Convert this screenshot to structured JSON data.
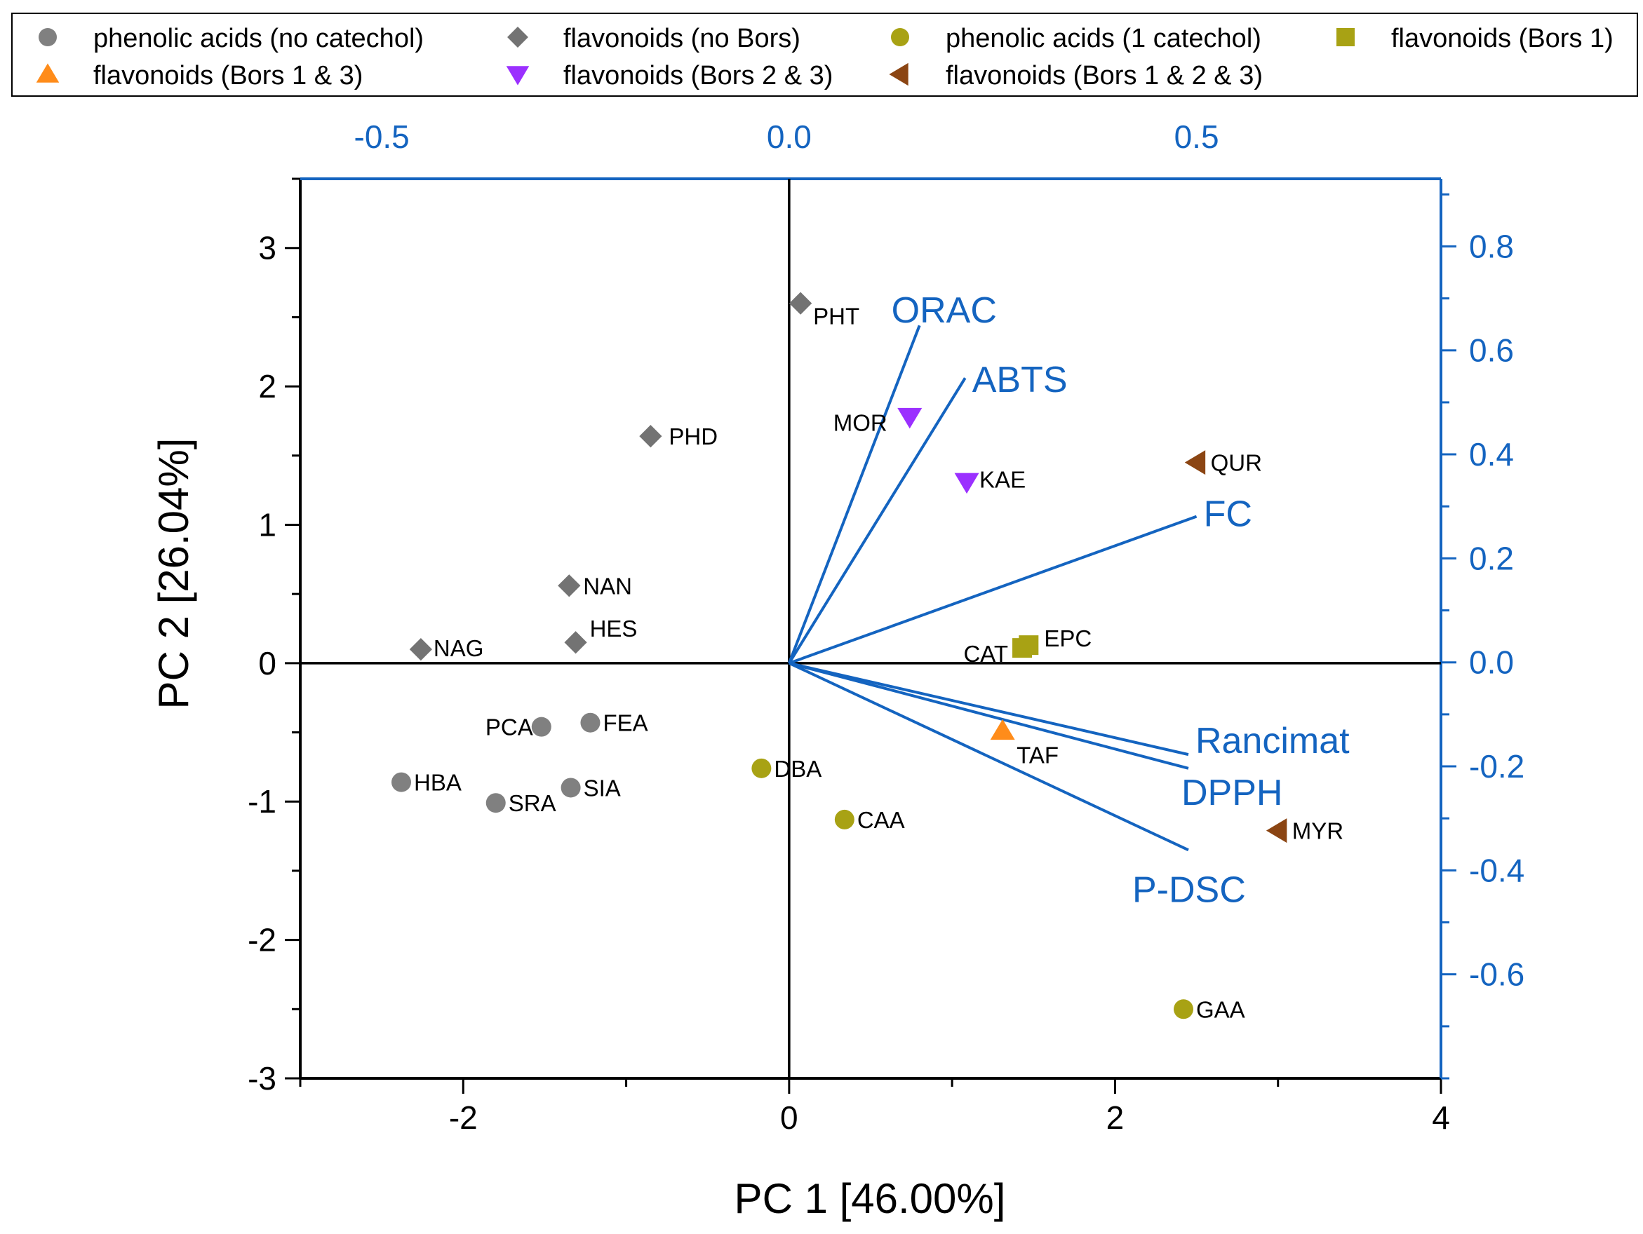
{
  "chart_data": {
    "type": "scatter",
    "subtype": "pca-biplot",
    "xlabel": "PC 1 [46.00%]",
    "ylabel": "PC 2 [26.04%]",
    "xlim": [
      -3,
      4
    ],
    "ylim": [
      -3,
      3.5
    ],
    "x_ticks": [
      -2,
      0,
      2,
      4
    ],
    "x_tick_labels": [
      "-2",
      "0",
      "2",
      "4"
    ],
    "y_ticks": [
      -3,
      -2,
      -1,
      0,
      1,
      2,
      3
    ],
    "y_tick_labels": [
      "-3",
      "-2",
      "-1",
      "0",
      "1",
      "2",
      "3"
    ],
    "top_axis": {
      "lim": [
        -0.6,
        0.8
      ],
      "ticks": [
        -0.5,
        0.0,
        0.5
      ],
      "tick_labels": [
        "-0.5",
        "0.0",
        "0.5"
      ],
      "color": "#1464c0"
    },
    "right_axis": {
      "lim": [
        -0.8,
        0.93
      ],
      "ticks": [
        -0.6,
        -0.4,
        -0.2,
        0.0,
        0.2,
        0.4,
        0.6,
        0.8
      ],
      "tick_labels": [
        "-0.6",
        "-0.4",
        "-0.2",
        "0.0",
        "0.2",
        "0.4",
        "0.6",
        "0.8"
      ],
      "color": "#1464c0"
    },
    "legend_position": "top",
    "series": [
      {
        "name": "phenolic acids (no catechol)",
        "marker": "circle",
        "color": "#808080",
        "points": [
          {
            "label": "PCA",
            "x": -1.52,
            "y": -0.46
          },
          {
            "label": "FEA",
            "x": -1.22,
            "y": -0.43
          },
          {
            "label": "HBA",
            "x": -2.38,
            "y": -0.86
          },
          {
            "label": "SRA",
            "x": -1.8,
            "y": -1.01
          },
          {
            "label": "SIA",
            "x": -1.34,
            "y": -0.9
          }
        ]
      },
      {
        "name": "flavonoids (no Bors)",
        "marker": "diamond",
        "color": "#737373",
        "points": [
          {
            "label": "PHT",
            "x": 0.07,
            "y": 2.6
          },
          {
            "label": "PHD",
            "x": -0.85,
            "y": 1.64
          },
          {
            "label": "NAN",
            "x": -1.35,
            "y": 0.56
          },
          {
            "label": "HES",
            "x": -1.31,
            "y": 0.15
          },
          {
            "label": "NAG",
            "x": -2.26,
            "y": 0.1
          }
        ]
      },
      {
        "name": "phenolic acids (1 catechol)",
        "marker": "circle",
        "color": "#a8a214",
        "points": [
          {
            "label": "DBA",
            "x": -0.17,
            "y": -0.76
          },
          {
            "label": "CAA",
            "x": 0.34,
            "y": -1.13
          },
          {
            "label": "GAA",
            "x": 2.42,
            "y": -2.5
          }
        ]
      },
      {
        "name": "flavonoids (Bors 1)",
        "marker": "square",
        "color": "#a8a214",
        "points": [
          {
            "label": "EPC",
            "x": 1.47,
            "y": 0.13
          },
          {
            "label": "CAT",
            "x": 1.43,
            "y": 0.11
          }
        ]
      },
      {
        "name": "flavonoids (Bors 1 & 3)",
        "marker": "triangle-up",
        "color": "#ff8c1a",
        "points": [
          {
            "label": "TAF",
            "x": 1.31,
            "y": -0.49
          }
        ]
      },
      {
        "name": "flavonoids (Bors 2 & 3)",
        "marker": "triangle-down",
        "color": "#9b30ff",
        "points": [
          {
            "label": "MOR",
            "x": 0.74,
            "y": 1.78
          },
          {
            "label": "KAE",
            "x": 1.09,
            "y": 1.31
          }
        ]
      },
      {
        "name": "flavonoids (Bors 1 & 2 & 3)",
        "marker": "triangle-left",
        "color": "#8b4513",
        "points": [
          {
            "label": "QUR",
            "x": 2.5,
            "y": 1.45
          },
          {
            "label": "MYR",
            "x": 3.0,
            "y": -1.21
          }
        ]
      }
    ],
    "loadings": [
      {
        "label": "ORAC",
        "x": 0.8,
        "y": 2.44
      },
      {
        "label": "ABTS",
        "x": 1.08,
        "y": 2.06
      },
      {
        "label": "FC",
        "x": 2.5,
        "y": 1.06
      },
      {
        "label": "Rancimat",
        "x": 2.45,
        "y": -0.66
      },
      {
        "label": "DPPH",
        "x": 2.45,
        "y": -0.76
      },
      {
        "label": "P-DSC",
        "x": 2.45,
        "y": -1.35
      }
    ]
  }
}
